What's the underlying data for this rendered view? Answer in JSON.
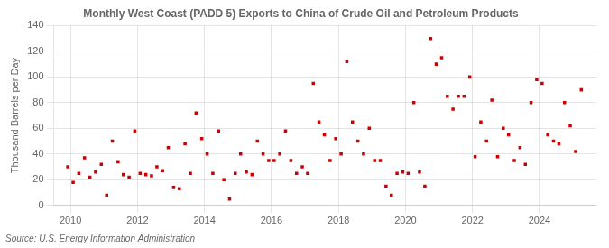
{
  "chart_data": {
    "type": "scatter",
    "title": "Monthly West Coast (PADD 5) Exports to China of Crude Oil and Petroleum Products",
    "ylabel": "Thousand Barrels per Day",
    "annotation": "Source: U.S. Energy Information Administration",
    "color": "#cc0000",
    "marker": "square",
    "grid": true,
    "xlim": [
      2009.5,
      2025.7
    ],
    "xticks": [
      2010,
      2012,
      2014,
      2016,
      2018,
      2020,
      2022,
      2024
    ],
    "ylim": [
      0,
      140
    ],
    "yticks": [
      0,
      20,
      40,
      60,
      80,
      100,
      120,
      140
    ],
    "x": [
      2009.92,
      2010.08,
      2010.25,
      2010.42,
      2010.58,
      2010.75,
      2010.92,
      2011.08,
      2011.25,
      2011.42,
      2011.58,
      2011.75,
      2011.92,
      2012.08,
      2012.25,
      2012.42,
      2012.58,
      2012.75,
      2012.92,
      2013.08,
      2013.25,
      2013.42,
      2013.58,
      2013.75,
      2013.92,
      2014.08,
      2014.25,
      2014.42,
      2014.58,
      2014.75,
      2014.92,
      2015.08,
      2015.25,
      2015.42,
      2015.58,
      2015.75,
      2015.92,
      2016.08,
      2016.25,
      2016.42,
      2016.58,
      2016.75,
      2016.92,
      2017.08,
      2017.25,
      2017.42,
      2017.58,
      2017.75,
      2017.92,
      2018.08,
      2018.25,
      2018.42,
      2018.58,
      2018.75,
      2018.92,
      2019.08,
      2019.25,
      2019.42,
      2019.58,
      2019.75,
      2019.92,
      2020.08,
      2020.25,
      2020.42,
      2020.58,
      2020.75,
      2020.92,
      2021.08,
      2021.25,
      2021.42,
      2021.58,
      2021.75,
      2021.92,
      2022.08,
      2022.25,
      2022.42,
      2022.58,
      2022.75,
      2022.92,
      2023.08,
      2023.25,
      2023.42,
      2023.58,
      2023.75,
      2023.92,
      2024.08,
      2024.25,
      2024.42,
      2024.58,
      2024.75,
      2024.92,
      2025.08,
      2025.25
    ],
    "values": [
      30,
      18,
      25,
      37,
      22,
      26,
      32,
      8,
      50,
      34,
      24,
      22,
      58,
      25,
      24,
      23,
      30,
      27,
      45,
      14,
      13,
      48,
      25,
      72,
      52,
      40,
      25,
      58,
      20,
      5,
      25,
      40,
      26,
      24,
      50,
      40,
      35,
      35,
      40,
      58,
      35,
      25,
      30,
      25,
      95,
      65,
      55,
      35,
      52,
      40,
      112,
      65,
      50,
      40,
      60,
      35,
      35,
      15,
      8,
      25,
      26,
      25,
      80,
      26,
      15,
      130,
      110,
      115,
      85,
      75,
      85,
      85,
      100,
      38,
      65,
      50,
      82,
      38,
      60,
      55,
      35,
      45,
      32,
      80,
      98,
      95,
      55,
      50,
      48,
      80,
      62,
      42,
      90
    ]
  }
}
